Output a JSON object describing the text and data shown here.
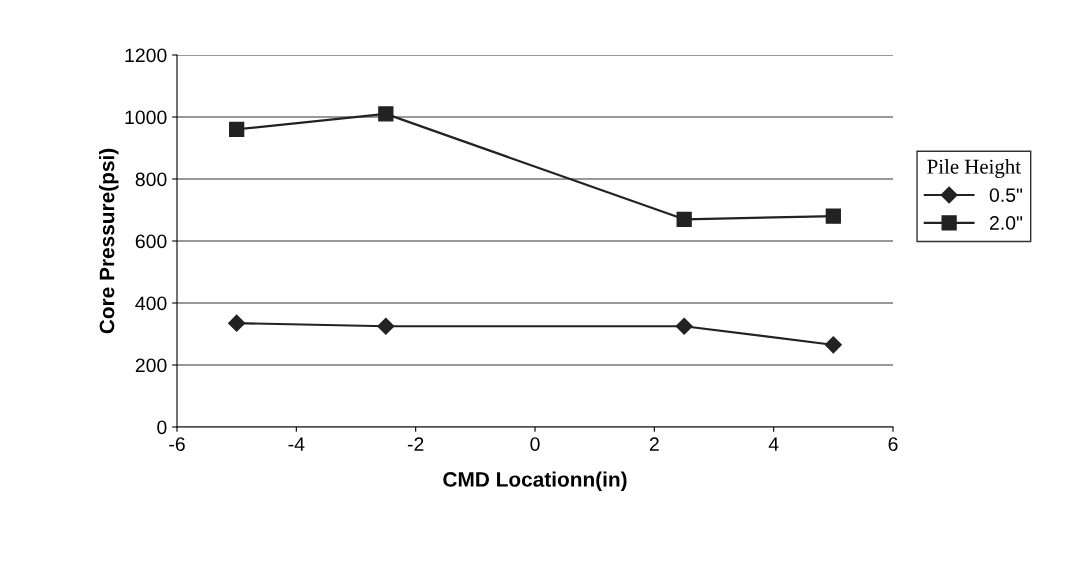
{
  "chart_data": {
    "type": "line",
    "xlabel": "CMD Locationn(in)",
    "ylabel": "Core Pressure(psi)",
    "legend_title": "Pile Height",
    "x": [
      -5,
      -2.5,
      2.5,
      5
    ],
    "series": [
      {
        "name": "0.5\"",
        "color": "#222222",
        "values": [
          335,
          325,
          325,
          265
        ],
        "marker": "diamond"
      },
      {
        "name": "2.0\"",
        "color": "#222222",
        "values": [
          960,
          1010,
          670,
          680
        ],
        "marker": "square"
      }
    ],
    "xlim": [
      -6,
      6
    ],
    "xticks": [
      -6,
      -4,
      -2,
      0,
      2,
      4,
      6
    ],
    "ylim": [
      0,
      1200
    ],
    "yticks": [
      0,
      200,
      400,
      600,
      800,
      1000,
      1200
    ],
    "grid": "y",
    "legend": "right",
    "line_style": "solid"
  }
}
